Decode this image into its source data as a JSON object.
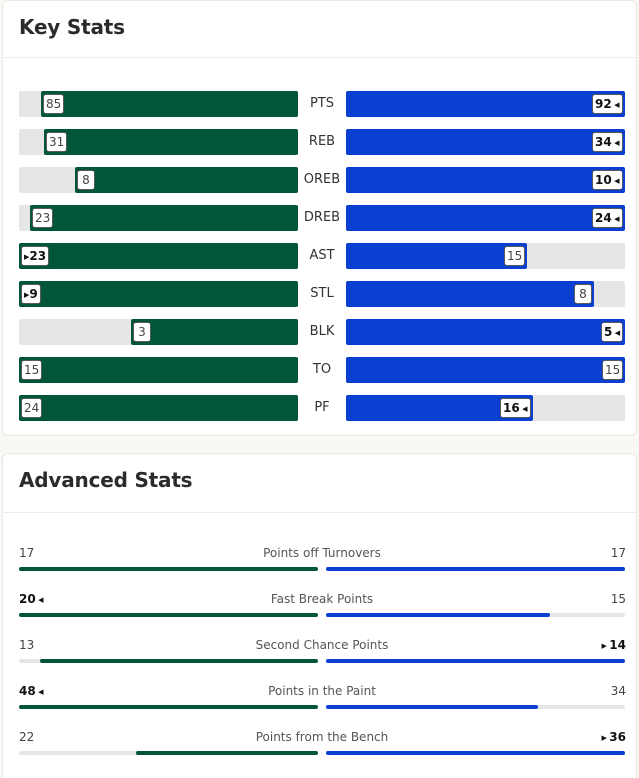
{
  "key_stats": {
    "title": "Key Stats",
    "rows": [
      {
        "label": "PTS",
        "home": "85",
        "away": "92",
        "home_frac": 0.92,
        "away_frac": 1.0,
        "leader": "away"
      },
      {
        "label": "REB",
        "home": "31",
        "away": "34",
        "home_frac": 0.91,
        "away_frac": 1.0,
        "leader": "away"
      },
      {
        "label": "OREB",
        "home": "8",
        "away": "10",
        "home_frac": 0.8,
        "away_frac": 1.0,
        "leader": "away"
      },
      {
        "label": "DREB",
        "home": "23",
        "away": "24",
        "home_frac": 0.96,
        "away_frac": 1.0,
        "leader": "away"
      },
      {
        "label": "AST",
        "home": "23",
        "away": "15",
        "home_frac": 1.0,
        "away_frac": 0.65,
        "leader": "home"
      },
      {
        "label": "STL",
        "home": "9",
        "away": "8",
        "home_frac": 1.0,
        "away_frac": 0.89,
        "leader": "home"
      },
      {
        "label": "BLK",
        "home": "3",
        "away": "5",
        "home_frac": 0.6,
        "away_frac": 1.0,
        "leader": "away"
      },
      {
        "label": "TO",
        "home": "15",
        "away": "15",
        "home_frac": 1.0,
        "away_frac": 1.0,
        "leader": "none"
      },
      {
        "label": "PF",
        "home": "24",
        "away": "16",
        "home_frac": 1.0,
        "away_frac": 0.67,
        "leader": "away"
      }
    ]
  },
  "advanced_stats": {
    "title": "Advanced Stats",
    "rows": [
      {
        "label": "Points off Turnovers",
        "home": "17",
        "away": "17",
        "home_frac": 1.0,
        "away_frac": 1.0,
        "leader": "none"
      },
      {
        "label": "Fast Break Points",
        "home": "20",
        "away": "15",
        "home_frac": 1.0,
        "away_frac": 0.75,
        "leader": "home"
      },
      {
        "label": "Second Chance Points",
        "home": "13",
        "away": "14",
        "home_frac": 0.93,
        "away_frac": 1.0,
        "leader": "away"
      },
      {
        "label": "Points in the Paint",
        "home": "48",
        "away": "34",
        "home_frac": 1.0,
        "away_frac": 0.71,
        "leader": "home"
      },
      {
        "label": "Points from the Bench",
        "home": "22",
        "away": "36",
        "home_frac": 0.61,
        "away_frac": 1.0,
        "leader": "away"
      }
    ]
  },
  "colors": {
    "home": "#00553a",
    "away": "#0a3fd1",
    "track": "#e6e6e6"
  }
}
